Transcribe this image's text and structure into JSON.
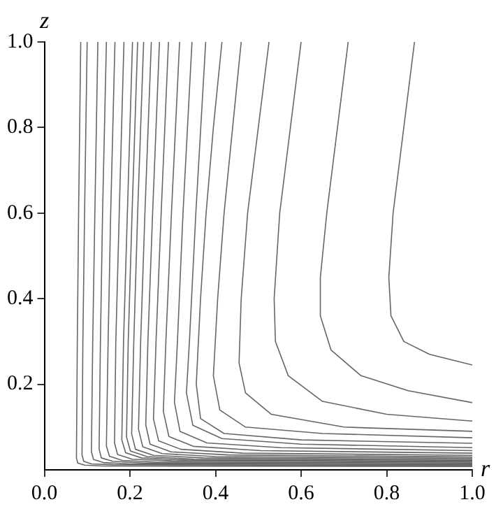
{
  "chart_data": {
    "type": "line",
    "xlabel": "r",
    "ylabel": "z",
    "xlim": [
      0,
      1
    ],
    "ylim": [
      0,
      1
    ],
    "xticks": [
      {
        "value": 0,
        "label": "0.0"
      },
      {
        "value": 0.2,
        "label": "0.2"
      },
      {
        "value": 0.4,
        "label": "0.4"
      },
      {
        "value": 0.6,
        "label": "0.6"
      },
      {
        "value": 0.8,
        "label": "0.8"
      },
      {
        "value": 1,
        "label": "1.0"
      }
    ],
    "yticks": [
      0.2,
      0.4,
      0.6,
      0.8,
      {
        "value": 1,
        "label": "1.0"
      }
    ],
    "grid": false,
    "legend": false,
    "marker": "none",
    "line_style": "solid",
    "series": [
      {
        "color": "#666666",
        "x": [
          0.865,
          0.84,
          0.815,
          0.805,
          0.81,
          0.84,
          0.9,
          1
        ],
        "values": [
          1,
          0.8,
          0.6,
          0.45,
          0.36,
          0.3,
          0.27,
          0.245
        ]
      },
      {
        "color": "#666666",
        "x": [
          0.71,
          0.685,
          0.66,
          0.645,
          0.645,
          0.67,
          0.74,
          0.85,
          1
        ],
        "values": [
          1,
          0.8,
          0.6,
          0.45,
          0.36,
          0.28,
          0.22,
          0.185,
          0.157
        ]
      },
      {
        "color": "#666666",
        "x": [
          0.6,
          0.575,
          0.55,
          0.537,
          0.54,
          0.57,
          0.65,
          0.8,
          1
        ],
        "values": [
          1,
          0.8,
          0.6,
          0.4,
          0.3,
          0.22,
          0.16,
          0.13,
          0.114
        ]
      },
      {
        "color": "#666666",
        "x": [
          0.525,
          0.5,
          0.475,
          0.46,
          0.455,
          0.47,
          0.53,
          0.7,
          1
        ],
        "values": [
          1,
          0.8,
          0.6,
          0.4,
          0.25,
          0.18,
          0.13,
          0.1,
          0.09
        ]
      },
      {
        "color": "#666666",
        "x": [
          0.46,
          0.44,
          0.42,
          0.405,
          0.395,
          0.41,
          0.47,
          0.65,
          1
        ],
        "values": [
          1,
          0.8,
          0.6,
          0.4,
          0.22,
          0.14,
          0.1,
          0.085,
          0.075
        ]
      },
      {
        "color": "#666666",
        "x": [
          0.415,
          0.395,
          0.378,
          0.365,
          0.355,
          0.365,
          0.42,
          0.6,
          1
        ],
        "values": [
          1,
          0.8,
          0.6,
          0.4,
          0.2,
          0.12,
          0.085,
          0.07,
          0.062
        ]
      },
      {
        "color": "#666666",
        "x": [
          0.377,
          0.354,
          0.339,
          0.332,
          0.347,
          0.415,
          0.6,
          1
        ],
        "values": [
          1,
          0.6,
          0.3,
          0.18,
          0.104,
          0.073,
          0.06,
          0.052
        ]
      },
      {
        "color": "#666666",
        "x": [
          0.345,
          0.324,
          0.311,
          0.304,
          0.317,
          0.38,
          0.552,
          1
        ],
        "values": [
          1,
          0.6,
          0.3,
          0.158,
          0.09,
          0.063,
          0.052,
          0.045
        ]
      },
      {
        "color": "#666666",
        "x": [
          0.316,
          0.297,
          0.284,
          0.278,
          0.291,
          0.348,
          0.506,
          1
        ],
        "values": [
          1,
          0.6,
          0.3,
          0.137,
          0.078,
          0.055,
          0.045,
          0.039
        ]
      },
      {
        "color": "#666666",
        "x": [
          0.29,
          0.273,
          0.261,
          0.255,
          0.267,
          0.319,
          0.464,
          1
        ],
        "values": [
          1,
          0.6,
          0.3,
          0.119,
          0.068,
          0.048,
          0.039,
          0.034
        ]
      },
      {
        "color": "#666666",
        "x": [
          0.269,
          0.253,
          0.242,
          0.237,
          0.247,
          0.296,
          0.43,
          1
        ],
        "values": [
          1,
          0.6,
          0.3,
          0.105,
          0.06,
          0.042,
          0.035,
          0.03
        ]
      },
      {
        "color": "#666666",
        "x": [
          0.25,
          0.235,
          0.225,
          0.22,
          0.23,
          0.275,
          0.4,
          1
        ],
        "values": [
          1,
          0.6,
          0.3,
          0.095,
          0.054,
          0.038,
          0.031,
          0.027
        ]
      },
      {
        "color": "#666666",
        "x": [
          0.232,
          0.218,
          0.209,
          0.204,
          0.213,
          0.255,
          0.371,
          1
        ],
        "values": [
          1,
          0.6,
          0.3,
          0.084,
          0.048,
          0.034,
          0.028,
          0.024
        ]
      },
      {
        "color": "#666666",
        "x": [
          0.218,
          0.205,
          0.196,
          0.192,
          0.201,
          0.24,
          0.349,
          1
        ],
        "values": [
          1,
          0.6,
          0.3,
          0.077,
          0.044,
          0.031,
          0.025,
          0.022
        ]
      },
      {
        "color": "#666666",
        "x": [
          0.206,
          0.194,
          0.185,
          0.181,
          0.19,
          0.227,
          0.33,
          1
        ],
        "values": [
          1,
          0.6,
          0.3,
          0.07,
          0.04,
          0.028,
          0.023,
          0.02
        ]
      },
      {
        "color": "#666666",
        "x": [
          0.186,
          0.175,
          0.167,
          0.164,
          0.171,
          0.205,
          0.298,
          1
        ],
        "values": [
          1,
          0.6,
          0.3,
          0.063,
          0.036,
          0.025,
          0.021,
          0.018
        ]
      },
      {
        "color": "#666666",
        "x": [
          0.165,
          0.155,
          0.149,
          0.145,
          0.152,
          0.182,
          0.264,
          1
        ],
        "values": [
          1,
          0.6,
          0.3,
          0.056,
          0.032,
          0.022,
          0.018,
          0.016
        ]
      },
      {
        "color": "#666666",
        "x": [
          0.145,
          0.136,
          0.131,
          0.128,
          0.133,
          0.16,
          0.232,
          1
        ],
        "values": [
          1,
          0.6,
          0.3,
          0.049,
          0.028,
          0.02,
          0.016,
          0.014
        ]
      },
      {
        "color": "#666666",
        "x": [
          0.125,
          0.118,
          0.113,
          0.11,
          0.115,
          0.138,
          0.2,
          1
        ],
        "values": [
          1,
          0.6,
          0.3,
          0.042,
          0.024,
          0.017,
          0.014,
          0.012
        ]
      },
      {
        "color": "#666666",
        "x": [
          0.1,
          0.094,
          0.09,
          0.088,
          0.092,
          0.11,
          0.16,
          1
        ],
        "values": [
          1,
          0.6,
          0.3,
          0.035,
          0.02,
          0.014,
          0.012,
          0.01
        ]
      },
      {
        "color": "#666666",
        "x": [
          0.085,
          0.08,
          0.077,
          0.075,
          0.078,
          0.094,
          0.136,
          1
        ],
        "values": [
          1,
          0.6,
          0.3,
          0.028,
          0.016,
          0.011,
          0.009,
          0.008
        ]
      }
    ]
  }
}
